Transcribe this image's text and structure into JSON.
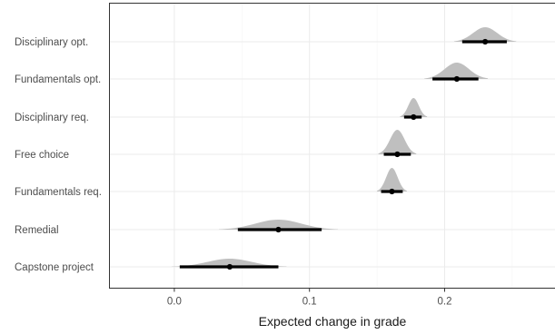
{
  "chart_data": {
    "type": "scatter",
    "subtype": "halfeye-interval",
    "title": "",
    "xlabel": "Expected change in grade",
    "ylabel": "",
    "xlim": [
      -0.048,
      0.282
    ],
    "x_ticks": [
      0.0,
      0.1,
      0.2
    ],
    "x_tick_labels": [
      "0.0",
      "0.1",
      "0.2"
    ],
    "grid": true,
    "theme": "bw",
    "colors": {
      "density": "#bfbfbf",
      "interval": "#000000",
      "grid_major": "#ebebeb",
      "grid_minor": "#f5f5f5",
      "panel_border": "#333333"
    },
    "categories": [
      "Disciplinary opt.",
      "Fundamentals opt.",
      "Disciplinary req.",
      "Free choice",
      "Fundamentals req.",
      "Remedial",
      "Capstone project"
    ],
    "series": [
      {
        "category": "Disciplinary opt.",
        "point": 0.23,
        "interval_low": 0.213,
        "interval_high": 0.246,
        "density_low": 0.207,
        "density_high": 0.253
      },
      {
        "category": "Fundamentals opt.",
        "point": 0.209,
        "interval_low": 0.191,
        "interval_high": 0.225,
        "density_low": 0.185,
        "density_high": 0.232
      },
      {
        "category": "Disciplinary req.",
        "point": 0.177,
        "interval_low": 0.17,
        "interval_high": 0.183,
        "density_low": 0.167,
        "density_high": 0.187
      },
      {
        "category": "Free choice",
        "point": 0.165,
        "interval_low": 0.155,
        "interval_high": 0.175,
        "density_low": 0.151,
        "density_high": 0.179
      },
      {
        "category": "Fundamentals req.",
        "point": 0.161,
        "interval_low": 0.153,
        "interval_high": 0.169,
        "density_low": 0.15,
        "density_high": 0.172
      },
      {
        "category": "Remedial",
        "point": 0.077,
        "interval_low": 0.047,
        "interval_high": 0.109,
        "density_low": 0.033,
        "density_high": 0.121
      },
      {
        "category": "Capstone project",
        "point": 0.041,
        "interval_low": 0.004,
        "interval_high": 0.077,
        "density_low": -0.002,
        "density_high": 0.083
      }
    ]
  }
}
